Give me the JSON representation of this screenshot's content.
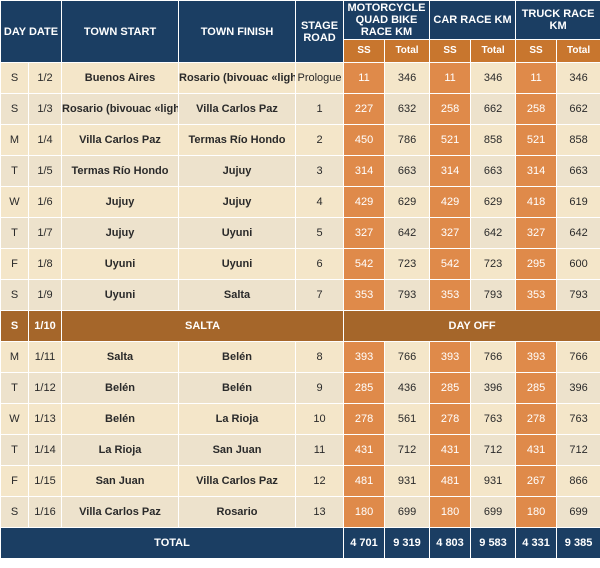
{
  "headers": {
    "day_date": "DAY DATE",
    "town_start": "TOWN START",
    "town_finish": "TOWN FINISH",
    "stage_road": "STAGE ROAD",
    "moto": "MOTORCYCLE QUAD BIKE RACE KM",
    "car": "CAR RACE KM",
    "truck": "TRUCK RACE KM",
    "ss": "SS",
    "total": "Total"
  },
  "rows": [
    {
      "day": "S",
      "date": "1/2",
      "start": "Buenos Aires",
      "finish": "Rosario (bivouac «light»)",
      "stage": "Prologue",
      "moto_ss": "11",
      "moto_total": "346",
      "car_ss": "11",
      "car_total": "346",
      "truck_ss": "11",
      "truck_total": "346"
    },
    {
      "day": "S",
      "date": "1/3",
      "start": "Rosario (bivouac «light»)",
      "finish": "Villa Carlos Paz",
      "stage": "1",
      "moto_ss": "227",
      "moto_total": "632",
      "car_ss": "258",
      "car_total": "662",
      "truck_ss": "258",
      "truck_total": "662"
    },
    {
      "day": "M",
      "date": "1/4",
      "start": "Villa Carlos Paz",
      "finish": "Termas Río Hondo",
      "stage": "2",
      "moto_ss": "450",
      "moto_total": "786",
      "car_ss": "521",
      "car_total": "858",
      "truck_ss": "521",
      "truck_total": "858"
    },
    {
      "day": "T",
      "date": "1/5",
      "start": "Termas Río Hondo",
      "finish": "Jujuy",
      "stage": "3",
      "moto_ss": "314",
      "moto_total": "663",
      "car_ss": "314",
      "car_total": "663",
      "truck_ss": "314",
      "truck_total": "663"
    },
    {
      "day": "W",
      "date": "1/6",
      "start": "Jujuy",
      "finish": "Jujuy",
      "stage": "4",
      "moto_ss": "429",
      "moto_total": "629",
      "car_ss": "429",
      "car_total": "629",
      "truck_ss": "418",
      "truck_total": "619"
    },
    {
      "day": "T",
      "date": "1/7",
      "start": "Jujuy",
      "finish": "Uyuni",
      "stage": "5",
      "moto_ss": "327",
      "moto_total": "642",
      "car_ss": "327",
      "car_total": "642",
      "truck_ss": "327",
      "truck_total": "642"
    },
    {
      "day": "F",
      "date": "1/8",
      "start": "Uyuni",
      "finish": "Uyuni",
      "stage": "6",
      "moto_ss": "542",
      "moto_total": "723",
      "car_ss": "542",
      "car_total": "723",
      "truck_ss": "295",
      "truck_total": "600"
    },
    {
      "day": "S",
      "date": "1/9",
      "start": "Uyuni",
      "finish": "Salta",
      "stage": "7",
      "moto_ss": "353",
      "moto_total": "793",
      "car_ss": "353",
      "car_total": "793",
      "truck_ss": "353",
      "truck_total": "793"
    },
    {
      "rest": true,
      "day": "S",
      "date": "1/10",
      "town": "SALTA",
      "label": "DAY OFF"
    },
    {
      "day": "M",
      "date": "1/11",
      "start": "Salta",
      "finish": "Belén",
      "stage": "8",
      "moto_ss": "393",
      "moto_total": "766",
      "car_ss": "393",
      "car_total": "766",
      "truck_ss": "393",
      "truck_total": "766"
    },
    {
      "day": "T",
      "date": "1/12",
      "start": "Belén",
      "finish": "Belén",
      "stage": "9",
      "moto_ss": "285",
      "moto_total": "436",
      "car_ss": "285",
      "car_total": "396",
      "truck_ss": "285",
      "truck_total": "396"
    },
    {
      "day": "W",
      "date": "1/13",
      "start": "Belén",
      "finish": "La Rioja",
      "stage": "10",
      "moto_ss": "278",
      "moto_total": "561",
      "car_ss": "278",
      "car_total": "763",
      "truck_ss": "278",
      "truck_total": "763"
    },
    {
      "day": "T",
      "date": "1/14",
      "start": "La Rioja",
      "finish": "San Juan",
      "stage": "11",
      "moto_ss": "431",
      "moto_total": "712",
      "car_ss": "431",
      "car_total": "712",
      "truck_ss": "431",
      "truck_total": "712"
    },
    {
      "day": "F",
      "date": "1/15",
      "start": "San Juan",
      "finish": "Villa Carlos Paz",
      "stage": "12",
      "moto_ss": "481",
      "moto_total": "931",
      "car_ss": "481",
      "car_total": "931",
      "truck_ss": "267",
      "truck_total": "866"
    },
    {
      "day": "S",
      "date": "1/16",
      "start": "Villa Carlos Paz",
      "finish": "Rosario",
      "stage": "13",
      "moto_ss": "180",
      "moto_total": "699",
      "car_ss": "180",
      "car_total": "699",
      "truck_ss": "180",
      "truck_total": "699"
    }
  ],
  "totals": {
    "label": "TOTAL",
    "moto_ss": "4 701",
    "moto_total": "9 319",
    "car_ss": "4 803",
    "car_total": "9 583",
    "truck_ss": "4 331",
    "truck_total": "9 385"
  }
}
